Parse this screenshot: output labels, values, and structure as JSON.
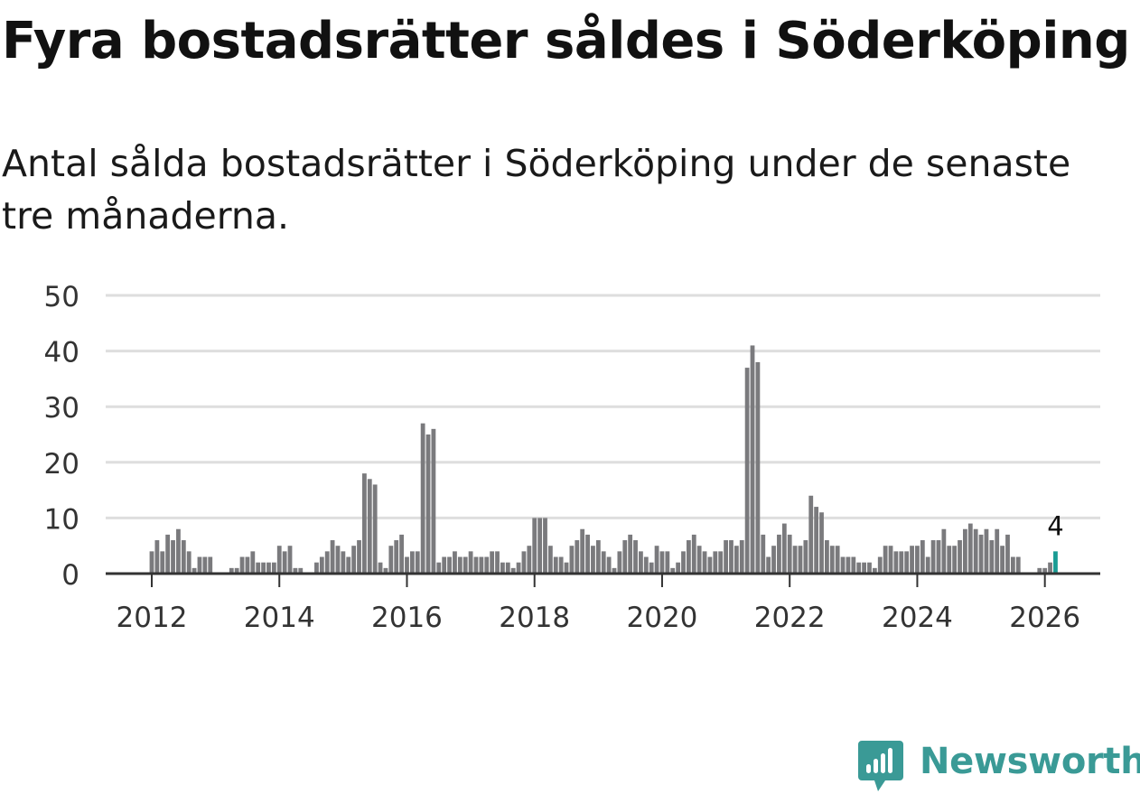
{
  "title": "Fyra bostadsrätter såldes i Söderköping",
  "subtitle": "Antal sålda bostadsrätter i Söderköping under de senaste tre månaderna.",
  "brand": {
    "name": "Newsworthy",
    "color": "#3a9a96"
  },
  "colors": {
    "bar": "#7a7a7d",
    "highlight": "#1a9c94",
    "grid": "#dedede",
    "axis": "#333333"
  },
  "chart_data": {
    "type": "bar",
    "x_start": "2012-01",
    "x_ticks": [
      "2012",
      "2014",
      "2016",
      "2018",
      "2020",
      "2022",
      "2024",
      "2026"
    ],
    "ylim": [
      0,
      50
    ],
    "y_ticks": [
      "0",
      "10",
      "20",
      "30",
      "40",
      "50"
    ],
    "values": [
      4,
      6,
      4,
      7,
      6,
      8,
      6,
      4,
      1,
      3,
      3,
      3,
      0,
      0,
      0,
      1,
      1,
      3,
      3,
      4,
      2,
      2,
      2,
      2,
      5,
      4,
      5,
      1,
      1,
      0,
      0,
      2,
      3,
      4,
      6,
      5,
      4,
      3,
      5,
      6,
      18,
      17,
      16,
      2,
      1,
      5,
      6,
      7,
      3,
      4,
      4,
      27,
      25,
      26,
      2,
      3,
      3,
      4,
      3,
      3,
      4,
      3,
      3,
      3,
      4,
      4,
      2,
      2,
      1,
      2,
      4,
      5,
      10,
      10,
      10,
      5,
      3,
      3,
      2,
      5,
      6,
      8,
      7,
      5,
      6,
      4,
      3,
      1,
      4,
      6,
      7,
      6,
      4,
      3,
      2,
      5,
      4,
      4,
      1,
      2,
      4,
      6,
      7,
      5,
      4,
      3,
      4,
      4,
      6,
      6,
      5,
      6,
      37,
      41,
      38,
      7,
      3,
      5,
      7,
      9,
      7,
      5,
      5,
      6,
      14,
      12,
      11,
      6,
      5,
      5,
      3,
      3,
      3,
      2,
      2,
      2,
      1,
      3,
      5,
      5,
      4,
      4,
      4,
      5,
      5,
      6,
      3,
      6,
      6,
      8,
      5,
      5,
      6,
      8,
      9,
      8,
      7,
      8,
      6,
      8,
      5,
      7,
      3,
      3,
      0,
      0,
      0,
      1,
      1,
      2,
      4
    ],
    "highlight_last": true,
    "highlight_label": "4",
    "title": "Fyra bostadsrätter såldes i Söderköping",
    "xlabel": "",
    "ylabel": ""
  }
}
